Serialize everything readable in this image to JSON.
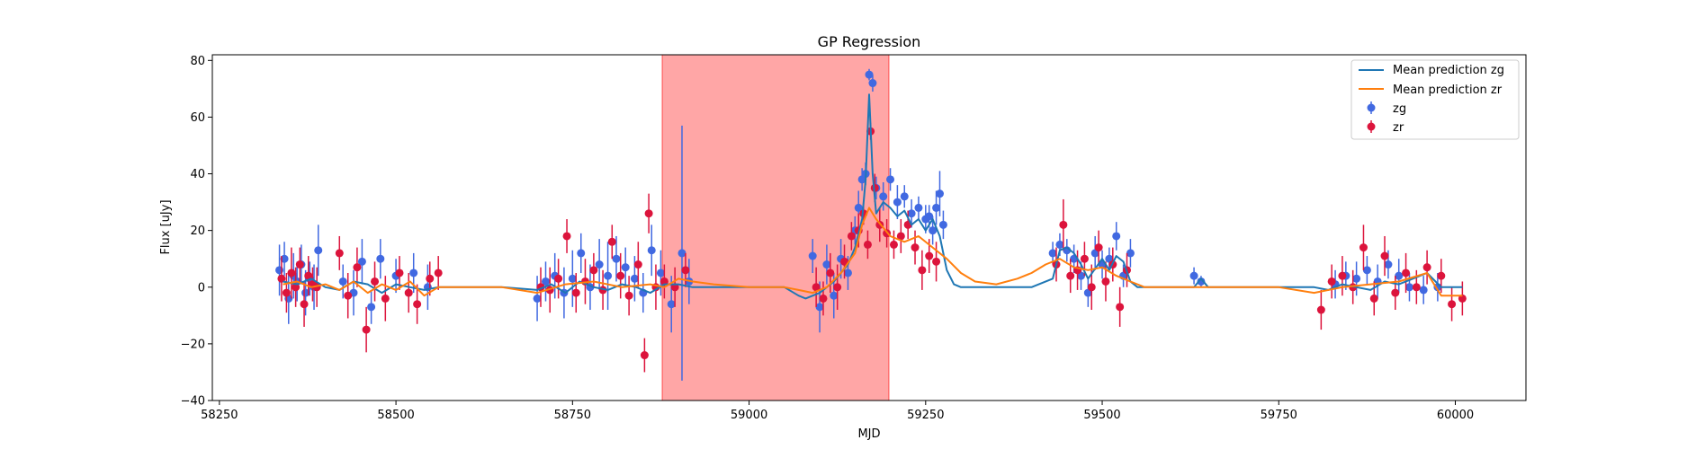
{
  "chart_data": {
    "type": "scatter",
    "title": "GP Regression",
    "xlabel": "MJD",
    "ylabel": "Flux [uJy]",
    "xlim": [
      58240,
      60100
    ],
    "ylim": [
      -40,
      82
    ],
    "xticks": [
      58250,
      58500,
      58750,
      59000,
      59250,
      59500,
      59750,
      60000
    ],
    "yticks": [
      -40,
      -20,
      0,
      20,
      40,
      60,
      80
    ],
    "grid": false,
    "legend_position": "top-right",
    "shaded_region": {
      "x_start": 58877,
      "x_end": 59198,
      "color": "#ff0000",
      "opacity": 0.35
    },
    "colors": {
      "zg_line": "#1f77b4",
      "zr_line": "#ff7f0e",
      "zg_points": "#4169e1",
      "zr_points": "#dc143c"
    },
    "series": [
      {
        "name": "Mean prediction zg",
        "kind": "line",
        "color": "#1f77b4",
        "x": [
          58340,
          58360,
          58380,
          58400,
          58420,
          58440,
          58460,
          58480,
          58500,
          58520,
          58540,
          58560,
          58600,
          58650,
          58700,
          58720,
          58740,
          58760,
          58780,
          58800,
          58820,
          58840,
          58860,
          58880,
          58900,
          58920,
          58950,
          59000,
          59050,
          59070,
          59080,
          59100,
          59120,
          59140,
          59150,
          59160,
          59165,
          59170,
          59175,
          59180,
          59190,
          59200,
          59210,
          59220,
          59230,
          59240,
          59250,
          59260,
          59270,
          59280,
          59290,
          59300,
          59350,
          59400,
          59430,
          59440,
          59450,
          59460,
          59470,
          59480,
          59500,
          59510,
          59520,
          59530,
          59540,
          59550,
          59560,
          59600,
          59630,
          59640,
          59650,
          59700,
          59750,
          59800,
          59820,
          59840,
          59860,
          59880,
          59900,
          59920,
          59940,
          59960,
          59980,
          60010
        ],
        "y": [
          2,
          1,
          3,
          0,
          -1,
          2,
          1,
          -2,
          1,
          0,
          -1,
          0,
          0,
          0,
          -1,
          1,
          -2,
          2,
          0,
          -1,
          1,
          0,
          -2,
          1,
          1,
          0,
          0,
          0,
          0,
          -3,
          -4,
          -2,
          2,
          8,
          14,
          24,
          38,
          68,
          40,
          26,
          30,
          28,
          25,
          27,
          22,
          24,
          20,
          24,
          18,
          6,
          1,
          0,
          0,
          0,
          3,
          13,
          14,
          12,
          8,
          3,
          10,
          6,
          11,
          9,
          2,
          0,
          0,
          0,
          0,
          3,
          0,
          0,
          0,
          0,
          -1,
          1,
          0,
          -1,
          2,
          1,
          3,
          5,
          0,
          0
        ]
      },
      {
        "name": "Mean prediction zr",
        "kind": "line",
        "color": "#ff7f0e",
        "x": [
          58340,
          58360,
          58380,
          58400,
          58420,
          58440,
          58460,
          58480,
          58500,
          58520,
          58540,
          58560,
          58600,
          58650,
          58700,
          58740,
          58780,
          58820,
          58860,
          58880,
          58900,
          58920,
          58950,
          59000,
          59050,
          59070,
          59090,
          59110,
          59130,
          59150,
          59160,
          59170,
          59180,
          59200,
          59220,
          59240,
          59260,
          59280,
          59300,
          59320,
          59350,
          59380,
          59400,
          59420,
          59440,
          59460,
          59480,
          59500,
          59520,
          59540,
          59560,
          59600,
          59650,
          59700,
          59750,
          59800,
          59840,
          59880,
          59920,
          59960,
          59980,
          60010
        ],
        "y": [
          1,
          2,
          0,
          1,
          -1,
          2,
          -2,
          1,
          -1,
          2,
          -3,
          0,
          0,
          0,
          -2,
          1,
          2,
          0,
          1,
          0,
          3,
          2,
          1,
          0,
          0,
          -1,
          -2,
          0,
          5,
          12,
          22,
          28,
          24,
          18,
          16,
          18,
          14,
          10,
          5,
          2,
          1,
          3,
          5,
          8,
          10,
          7,
          6,
          7,
          4,
          2,
          0,
          0,
          0,
          0,
          0,
          -2,
          0,
          1,
          2,
          5,
          -3,
          -3
        ]
      },
      {
        "name": "zg",
        "kind": "errorbar",
        "color": "#4169e1",
        "x": [
          58335,
          58342,
          58348,
          58355,
          58360,
          58366,
          58372,
          58378,
          58384,
          58390,
          58425,
          58440,
          58452,
          58465,
          58478,
          58500,
          58525,
          58545,
          58700,
          58712,
          58725,
          58738,
          58750,
          58762,
          58775,
          58788,
          58800,
          58812,
          58825,
          58838,
          58850,
          58862,
          58875,
          58890,
          58905,
          58915,
          59090,
          59100,
          59110,
          59120,
          59130,
          59140,
          59150,
          59155,
          59160,
          59165,
          59170,
          59175,
          59180,
          59190,
          59200,
          59210,
          59220,
          59230,
          59240,
          59250,
          59255,
          59260,
          59265,
          59270,
          59275,
          59430,
          59440,
          59450,
          59460,
          59470,
          59480,
          59490,
          59500,
          59510,
          59520,
          59530,
          59540,
          59630,
          59640,
          59830,
          59845,
          59860,
          59875,
          59890,
          59905,
          59920,
          59935,
          59955,
          59975
        ],
        "y": [
          6,
          10,
          -4,
          4,
          2,
          8,
          -2,
          3,
          0,
          13,
          2,
          -2,
          9,
          -7,
          10,
          4,
          5,
          0,
          -4,
          2,
          4,
          -2,
          3,
          12,
          0,
          8,
          4,
          10,
          7,
          3,
          -2,
          13,
          5,
          -6,
          12,
          2,
          11,
          -7,
          8,
          -3,
          10,
          5,
          20,
          28,
          38,
          40,
          75,
          72,
          35,
          32,
          38,
          30,
          32,
          26,
          28,
          24,
          25,
          20,
          28,
          33,
          22,
          12,
          15,
          13,
          10,
          4,
          -2,
          12,
          8,
          10,
          18,
          4,
          12,
          4,
          2,
          1,
          4,
          3,
          6,
          2,
          8,
          4,
          0,
          -1,
          0
        ],
        "err": [
          9,
          6,
          9,
          8,
          7,
          7,
          8,
          6,
          8,
          9,
          6,
          8,
          8,
          6,
          7,
          6,
          7,
          8,
          8,
          7,
          8,
          9,
          10,
          7,
          8,
          9,
          12,
          8,
          7,
          8,
          7,
          9,
          8,
          10,
          45,
          8,
          6,
          9,
          7,
          8,
          7,
          6,
          5,
          6,
          4,
          4,
          2,
          3,
          4,
          5,
          4,
          6,
          4,
          5,
          4,
          5,
          4,
          5,
          6,
          8,
          5,
          4,
          4,
          4,
          5,
          5,
          5,
          6,
          5,
          4,
          5,
          4,
          5,
          3,
          2,
          5,
          5,
          6,
          5,
          6,
          5,
          6,
          5,
          5,
          5
        ]
      },
      {
        "name": "zr",
        "kind": "errorbar",
        "color": "#dc143c",
        "x": [
          58338,
          58345,
          58352,
          58358,
          58364,
          58370,
          58376,
          58382,
          58388,
          58420,
          58432,
          58445,
          58458,
          58470,
          58485,
          58505,
          58518,
          58530,
          58548,
          58560,
          58705,
          58718,
          58730,
          58742,
          58755,
          58768,
          58780,
          58793,
          58806,
          58818,
          58830,
          58843,
          58852,
          58858,
          58868,
          58880,
          58895,
          58910,
          59095,
          59105,
          59115,
          59125,
          59135,
          59145,
          59155,
          59162,
          59168,
          59172,
          59178,
          59185,
          59195,
          59205,
          59215,
          59225,
          59235,
          59245,
          59255,
          59265,
          59435,
          59445,
          59455,
          59465,
          59475,
          59485,
          59495,
          59505,
          59515,
          59525,
          59535,
          59810,
          59825,
          59840,
          59855,
          59870,
          59885,
          59900,
          59915,
          59930,
          59945,
          59960,
          59980,
          59995,
          60010
        ],
        "y": [
          3,
          -2,
          5,
          0,
          8,
          -6,
          4,
          1,
          0,
          12,
          -3,
          7,
          -15,
          2,
          -4,
          5,
          -2,
          -6,
          3,
          5,
          0,
          -1,
          3,
          18,
          -2,
          2,
          6,
          -1,
          16,
          4,
          -3,
          8,
          -24,
          26,
          0,
          2,
          0,
          6,
          0,
          -4,
          5,
          0,
          9,
          18,
          20,
          26,
          15,
          55,
          35,
          22,
          19,
          15,
          18,
          22,
          14,
          6,
          11,
          9,
          8,
          22,
          4,
          6,
          10,
          0,
          14,
          2,
          8,
          -7,
          6,
          -8,
          2,
          4,
          0,
          14,
          -4,
          11,
          -2,
          5,
          0,
          7,
          4,
          -6,
          -4
        ],
        "err": [
          8,
          7,
          9,
          7,
          6,
          8,
          7,
          6,
          7,
          6,
          8,
          7,
          8,
          7,
          8,
          6,
          7,
          7,
          6,
          6,
          7,
          8,
          7,
          6,
          7,
          8,
          6,
          7,
          6,
          8,
          7,
          8,
          6,
          7,
          8,
          6,
          7,
          6,
          7,
          6,
          7,
          8,
          6,
          5,
          6,
          4,
          5,
          3,
          5,
          6,
          5,
          5,
          6,
          5,
          6,
          7,
          6,
          7,
          6,
          9,
          6,
          7,
          6,
          8,
          6,
          7,
          6,
          7,
          6,
          7,
          6,
          7,
          6,
          8,
          6,
          7,
          6,
          7,
          6,
          6,
          6,
          6,
          6
        ]
      }
    ]
  }
}
